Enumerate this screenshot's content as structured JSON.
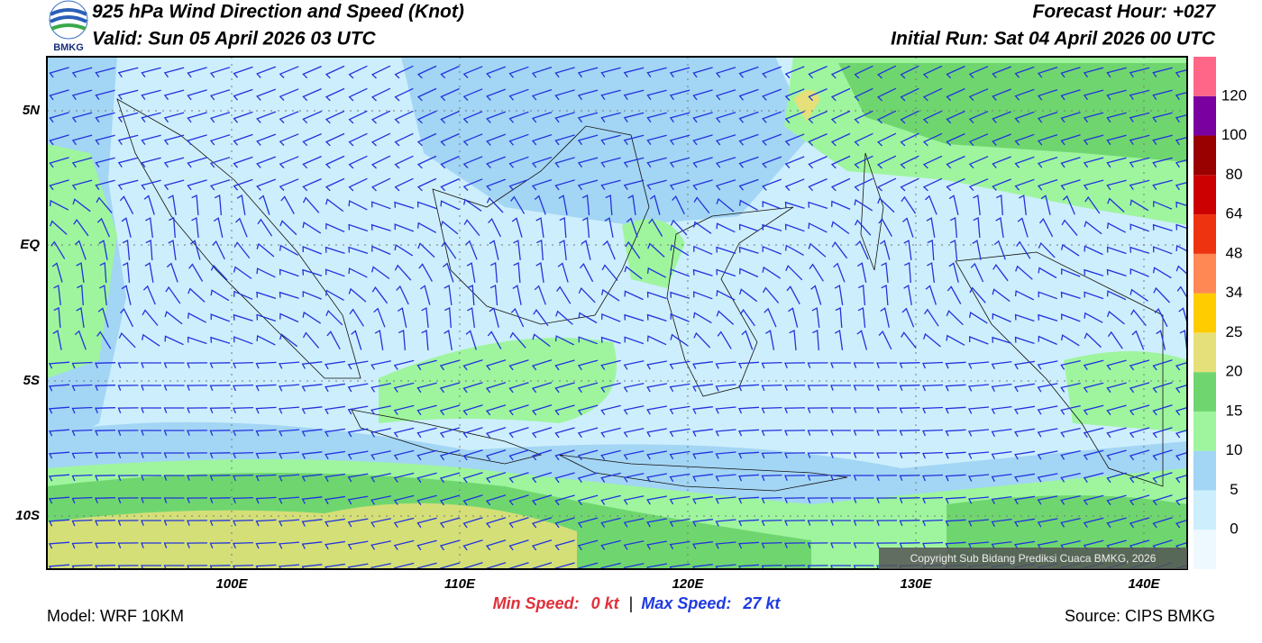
{
  "header": {
    "title": "925 hPa Wind Direction and Speed (Knot)",
    "valid": "Valid: Sun 05 April 2026 03 UTC",
    "forecast_hour": "Forecast Hour: +027",
    "initial_run": "Initial Run: Sat 04 April 2026 00 UTC",
    "logo_text": "BMKG"
  },
  "map": {
    "lat_labels": [
      "5N",
      "EQ",
      "5S",
      "10S"
    ],
    "lon_labels": [
      "100E",
      "110E",
      "120E",
      "130E",
      "140E"
    ],
    "copyright": "Copyright Sub Bidang Prediksi Cuaca BMKG, 2026"
  },
  "colorbar": {
    "levels": [
      0,
      5,
      10,
      15,
      20,
      25,
      34,
      48,
      64,
      80,
      100,
      120
    ],
    "colors": [
      "#eef8ff",
      "#cdeefc",
      "#a3d5f5",
      "#9ef59e",
      "#6fd66f",
      "#e6e07a",
      "#ffcc00",
      "#ff8855",
      "#ee3311",
      "#cc0000",
      "#990000",
      "#7a00a0",
      "#ff6688"
    ]
  },
  "footer": {
    "min_speed_label": "Min Speed:",
    "min_speed": "0 kt",
    "separator": "|",
    "max_speed_label": "Max Speed:",
    "max_speed": "27 kt",
    "model": "Model: WRF 10KM",
    "source": "Source: CIPS BMKG"
  }
}
